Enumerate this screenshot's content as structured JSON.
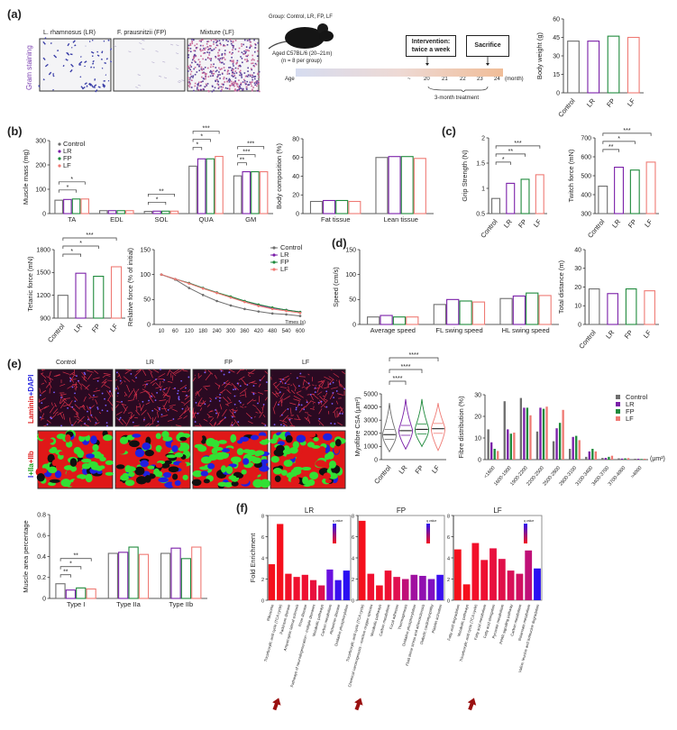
{
  "panel_labels": {
    "a": "(a)",
    "b": "(b)",
    "c": "(c)",
    "d": "(d)",
    "e": "(e)",
    "f": "(f)"
  },
  "colors": {
    "Control": "#6e6e6e",
    "LR": "#7a1fa8",
    "FP": "#1f8a3c",
    "LF": "#ef7a74"
  },
  "panel_a": {
    "staining_label": "Gram staining",
    "images": [
      {
        "title": "L. rhamnosus (LR)"
      },
      {
        "title": "F. prausnitzii (FP)"
      },
      {
        "title": "Mixture (LF)"
      }
    ],
    "group_text": "Group: Control, LR, FP, LF",
    "mouse_text": "Aged C57BL/6 (20–21m)",
    "n_text": "(n = 8 per group)",
    "age_label": "Age",
    "months": [
      "~",
      "20",
      "21",
      "22",
      "23",
      "24"
    ],
    "month_unit": "(month)",
    "intervention_line1": "Intervention:",
    "intervention_line2": "twice a week",
    "sacrifice": "Sacrifice",
    "treatment": "3-month treatment"
  },
  "panel_e": {
    "columns": [
      "Control",
      "LR",
      "FP",
      "LF"
    ],
    "row1_parts": [
      {
        "text": "Laminin",
        "color": "#e02020"
      },
      {
        "text": "+DAPI",
        "color": "#2a2ae0"
      }
    ],
    "row2_parts": [
      {
        "text": "I",
        "color": "#2a2ae0"
      },
      {
        "text": "+IIa",
        "color": "#20a020"
      },
      {
        "text": "+IIb",
        "color": "#e02020"
      }
    ]
  },
  "chart_data": [
    {
      "type": "bar",
      "categories": [
        "Control",
        "LR",
        "FP",
        "LF"
      ],
      "values": [
        42,
        42,
        46,
        45
      ],
      "ylabel": "Body weight (g)",
      "ylim": [
        0,
        60
      ],
      "yticks": [
        0,
        15,
        30,
        45,
        60
      ],
      "significance": []
    },
    {
      "type": "bar",
      "categories": [
        "TA",
        "EDL",
        "SOL",
        "QUA",
        "GM"
      ],
      "series": [
        {
          "name": "Control",
          "values": [
            55,
            12,
            9,
            195,
            155
          ]
        },
        {
          "name": "LR",
          "values": [
            58,
            12,
            10,
            225,
            172
          ]
        },
        {
          "name": "FP",
          "values": [
            60,
            12,
            10,
            225,
            172
          ]
        },
        {
          "name": "LF",
          "values": [
            60,
            12,
            10,
            235,
            172
          ]
        }
      ],
      "ylabel": "Muscle mass (mg)",
      "ylim": [
        0,
        300
      ],
      "yticks": [
        0,
        100,
        200,
        300
      ],
      "legend": "top-left",
      "significance": [
        {
          "category": "TA",
          "compare": [
            "Control",
            "FP"
          ],
          "label": "*"
        },
        {
          "category": "TA",
          "compare": [
            "Control",
            "LF"
          ],
          "label": "*"
        },
        {
          "category": "SOL",
          "compare": [
            "Control",
            "FP"
          ],
          "label": "*"
        },
        {
          "category": "SOL",
          "compare": [
            "Control",
            "LF"
          ],
          "label": "**"
        },
        {
          "category": "QUA",
          "compare": [
            "Control",
            "LR"
          ],
          "label": "*"
        },
        {
          "category": "QUA",
          "compare": [
            "Control",
            "FP"
          ],
          "label": "*"
        },
        {
          "category": "QUA",
          "compare": [
            "Control",
            "LF"
          ],
          "label": "***"
        },
        {
          "category": "GM",
          "compare": [
            "Control",
            "LR"
          ],
          "label": "**"
        },
        {
          "category": "GM",
          "compare": [
            "Control",
            "FP"
          ],
          "label": "***"
        },
        {
          "category": "GM",
          "compare": [
            "Control",
            "LF"
          ],
          "label": "***"
        }
      ]
    },
    {
      "type": "bar",
      "categories": [
        "Fat tissue",
        "Lean tissue"
      ],
      "series": [
        {
          "name": "Control",
          "values": [
            13,
            60
          ]
        },
        {
          "name": "LR",
          "values": [
            14,
            61
          ]
        },
        {
          "name": "FP",
          "values": [
            14,
            61
          ]
        },
        {
          "name": "LF",
          "values": [
            13,
            59
          ]
        }
      ],
      "ylabel": "Body composition (%)",
      "ylim": [
        0,
        80
      ],
      "yticks": [
        0,
        20,
        40,
        60,
        80
      ],
      "significance": []
    },
    {
      "type": "bar",
      "categories": [
        "Control",
        "LR",
        "FP",
        "LF"
      ],
      "values": [
        0.8,
        1.1,
        1.18,
        1.27
      ],
      "ylabel": "Grip Strength (N)",
      "ylim": [
        0.5,
        2.0
      ],
      "yticks": [
        0.5,
        1.0,
        1.5,
        2.0
      ],
      "significance": [
        {
          "compare": [
            "Control",
            "LR"
          ],
          "label": "*"
        },
        {
          "compare": [
            "Control",
            "FP"
          ],
          "label": "**"
        },
        {
          "compare": [
            "Control",
            "LF"
          ],
          "label": "***"
        }
      ]
    },
    {
      "type": "bar",
      "categories": [
        "Control",
        "LR",
        "FP",
        "LF"
      ],
      "values": [
        445,
        545,
        530,
        572
      ],
      "ylabel": "Twitch force (mN)",
      "ylim": [
        300,
        700
      ],
      "yticks": [
        300,
        400,
        500,
        600,
        700
      ],
      "significance": [
        {
          "compare": [
            "Control",
            "LR"
          ],
          "label": "**"
        },
        {
          "compare": [
            "Control",
            "FP"
          ],
          "label": "*"
        },
        {
          "compare": [
            "Control",
            "LF"
          ],
          "label": "***"
        }
      ]
    },
    {
      "type": "bar",
      "categories": [
        "Control",
        "LR",
        "FP",
        "LF"
      ],
      "values": [
        1200,
        1490,
        1450,
        1575
      ],
      "ylabel": "Tetanic force (mN)",
      "ylim": [
        900,
        1800
      ],
      "yticks": [
        900,
        1200,
        1500,
        1800
      ],
      "significance": [
        {
          "compare": [
            "Control",
            "LR"
          ],
          "label": "*"
        },
        {
          "compare": [
            "Control",
            "FP"
          ],
          "label": "*"
        },
        {
          "compare": [
            "Control",
            "LF"
          ],
          "label": "***"
        }
      ]
    },
    {
      "type": "line",
      "x": [
        10,
        60,
        120,
        180,
        240,
        300,
        360,
        420,
        480,
        540,
        600
      ],
      "xlabel": "Times (s)",
      "ylabel": "Relative force (% of initial)",
      "ylim": [
        0,
        150
      ],
      "yticks": [
        0,
        50,
        100,
        150
      ],
      "legend": "top-right",
      "series": [
        {
          "name": "Control",
          "values": [
            100,
            90,
            73,
            59,
            47,
            38,
            31,
            26,
            22,
            20,
            17
          ]
        },
        {
          "name": "LR",
          "values": [
            100,
            91,
            83,
            73,
            64,
            55,
            47,
            39,
            33,
            29,
            25
          ]
        },
        {
          "name": "FP",
          "values": [
            100,
            91,
            83,
            73,
            64,
            56,
            47,
            40,
            34,
            29,
            25
          ]
        },
        {
          "name": "LF",
          "values": [
            100,
            91,
            82,
            72,
            63,
            54,
            45,
            37,
            31,
            27,
            23
          ]
        }
      ]
    },
    {
      "type": "bar",
      "categories": [
        "Average speed",
        "FL swing speed",
        "HL swing speed"
      ],
      "series": [
        {
          "name": "Control",
          "values": [
            15,
            40,
            52
          ]
        },
        {
          "name": "LR",
          "values": [
            18,
            50,
            57
          ]
        },
        {
          "name": "FP",
          "values": [
            15,
            47,
            63
          ]
        },
        {
          "name": "LF",
          "values": [
            15,
            45,
            58
          ]
        }
      ],
      "ylabel": "Speed (cm/s)",
      "ylim": [
        0,
        150
      ],
      "yticks": [
        0,
        50,
        100,
        150
      ],
      "significance": []
    },
    {
      "type": "bar",
      "categories": [
        "Control",
        "LR",
        "FP",
        "LF"
      ],
      "values": [
        19,
        16.5,
        19,
        18
      ],
      "ylabel": "Total distance (m)",
      "ylim": [
        0,
        40
      ],
      "yticks": [
        0,
        10,
        20,
        30,
        40
      ],
      "significance": []
    },
    {
      "type": "violin",
      "categories": [
        "Control",
        "LR",
        "FP",
        "LF"
      ],
      "medians": [
        1900,
        2200,
        2300,
        2350
      ],
      "ranges": [
        [
          600,
          4300
        ],
        [
          800,
          4600
        ],
        [
          1000,
          4600
        ],
        [
          700,
          4300
        ]
      ],
      "ylabel": "Myofibre CSA (μm²)",
      "ylim": [
        0,
        5000
      ],
      "yticks": [
        0,
        1000,
        2000,
        3000,
        4000,
        5000
      ],
      "significance": [
        {
          "compare": [
            "Control",
            "LR"
          ],
          "label": "****"
        },
        {
          "compare": [
            "Control",
            "FP"
          ],
          "label": "****"
        },
        {
          "compare": [
            "Control",
            "LF"
          ],
          "label": "****"
        }
      ]
    },
    {
      "type": "bar",
      "categories": [
        "<1600",
        "1600-1900",
        "1900-2200",
        "2200-2500",
        "2500-2800",
        "2800-3100",
        "3100-3400",
        "3400-3700",
        "3700-4000",
        ">4000"
      ],
      "series": [
        {
          "name": "Control",
          "values": [
            14,
            27,
            28.5,
            13,
            8.5,
            5,
            1.3,
            0.8,
            0.6,
            0.4
          ]
        },
        {
          "name": "LR",
          "values": [
            8,
            14,
            24,
            24,
            14.5,
            10.5,
            3.8,
            0.8,
            0.5,
            0.4
          ]
        },
        {
          "name": "FP",
          "values": [
            5,
            12,
            24,
            23.5,
            17,
            11,
            5,
            1.3,
            0.6,
            0.3
          ]
        },
        {
          "name": "LF",
          "values": [
            4,
            12.5,
            20.5,
            24.5,
            23,
            9,
            3.8,
            1.8,
            0.7,
            0.4
          ]
        }
      ],
      "ylabel": "Fibre distribution (%)",
      "xunit": "(μm²)",
      "ylim": [
        0,
        30
      ],
      "yticks": [
        0,
        10,
        20,
        30
      ],
      "legend": "top-right",
      "significance": []
    },
    {
      "type": "bar",
      "categories": [
        "Type I",
        "Type IIa",
        "Type IIb"
      ],
      "series": [
        {
          "name": "Control",
          "values": [
            0.14,
            0.43,
            0.43
          ]
        },
        {
          "name": "LR",
          "values": [
            0.08,
            0.44,
            0.48
          ]
        },
        {
          "name": "FP",
          "values": [
            0.1,
            0.49,
            0.38
          ]
        },
        {
          "name": "LF",
          "values": [
            0.09,
            0.42,
            0.49
          ]
        }
      ],
      "ylabel": "Muscle area percentage",
      "ylim": [
        0,
        0.8
      ],
      "yticks": [
        0.0,
        0.2,
        0.4,
        0.6,
        0.8
      ],
      "significance": [
        {
          "category": "Type I",
          "compare": [
            "Control",
            "LR"
          ],
          "label": "**"
        },
        {
          "category": "Type I",
          "compare": [
            "Control",
            "FP"
          ],
          "label": "*"
        },
        {
          "category": "Type I",
          "compare": [
            "Control",
            "LF"
          ],
          "label": "**"
        }
      ]
    },
    {
      "type": "bar",
      "title": "LR",
      "ylabel": "Fold Enrichment",
      "ylim": [
        0,
        8
      ],
      "yticks": [
        0,
        2,
        4,
        6,
        8
      ],
      "legend_title": "q value",
      "highlight": "Tricarboxylic acid cycle (TCA cycle)",
      "categories": [
        "Ribosome",
        "Tricarboxylic acid cycle (TCA cycle)",
        "Parkinson disease",
        "Amyotrophic lateral sclerosis",
        "Prion disease",
        "Pathways of neurodegeneration - multiple diseases",
        "Metabolic pathways",
        "Carbon metabolism",
        "Alzheimer disease",
        "Oxidative phosphorylation"
      ],
      "values": [
        3.4,
        7.2,
        2.5,
        2.2,
        2.4,
        1.9,
        1.4,
        2.9,
        1.9,
        2.8
      ],
      "bar_colors": [
        "#f5101c",
        "#f5101c",
        "#f21028",
        "#ef102e",
        "#ee1032",
        "#e8103e",
        "#de104e",
        "#6a10e0",
        "#3a10f0",
        "#2a10f2"
      ]
    },
    {
      "type": "bar",
      "title": "FP",
      "ylabel": "",
      "ylim": [
        0,
        8
      ],
      "yticks": [
        0,
        2,
        4,
        6,
        8
      ],
      "legend_title": "q value",
      "highlight": "Tricarboxylic acid cycle (TCA cycle)",
      "categories": [
        "Tricarboxylic acid cycle (TCA cycle)",
        "Chemical carcinogenesis - reactive oxygen species",
        "Metabolic pathways",
        "Carbon metabolism",
        "Focal adhesion",
        "Thermogenesis",
        "Oxidative phosphorylation",
        "Fluid shear stress and atherosclerosis",
        "Diabetic cardiomyopathy",
        "Platelet activation"
      ],
      "values": [
        7.5,
        2.5,
        1.4,
        2.8,
        2.2,
        2.0,
        2.4,
        2.3,
        2.0,
        2.4
      ],
      "bar_colors": [
        "#f5101c",
        "#f01030",
        "#f21028",
        "#ee1032",
        "#e01050",
        "#c01078",
        "#a010a0",
        "#9010b0",
        "#8010c0",
        "#3a10f0"
      ]
    },
    {
      "type": "bar",
      "title": "LF",
      "ylabel": "",
      "ylim": [
        0,
        8
      ],
      "yticks": [
        0,
        2,
        4,
        6,
        8
      ],
      "legend_title": "q value",
      "highlight": "Tricarboxylic acid cycle (TCA cycle)",
      "categories": [
        "Fatty acid degradation",
        "Metabolic pathways",
        "Tricarboxylic acid cycle (TCA cycle)",
        "Fatty acid metabolism",
        "Fatty acid elongation",
        "Pyruvate metabolism",
        "PPAR signaling pathway",
        "Carbon metabolism",
        "Butanoate metabolism",
        "Valine, leucine and isoleucine degradation"
      ],
      "values": [
        4.8,
        1.5,
        5.4,
        3.8,
        4.9,
        3.9,
        2.8,
        2.5,
        4.7,
        3.0
      ],
      "bar_colors": [
        "#f5101c",
        "#f5101c",
        "#f2102a",
        "#ee1032",
        "#e8103e",
        "#e0104a",
        "#d81058",
        "#d01062",
        "#c01078",
        "#2a10f2"
      ]
    }
  ]
}
